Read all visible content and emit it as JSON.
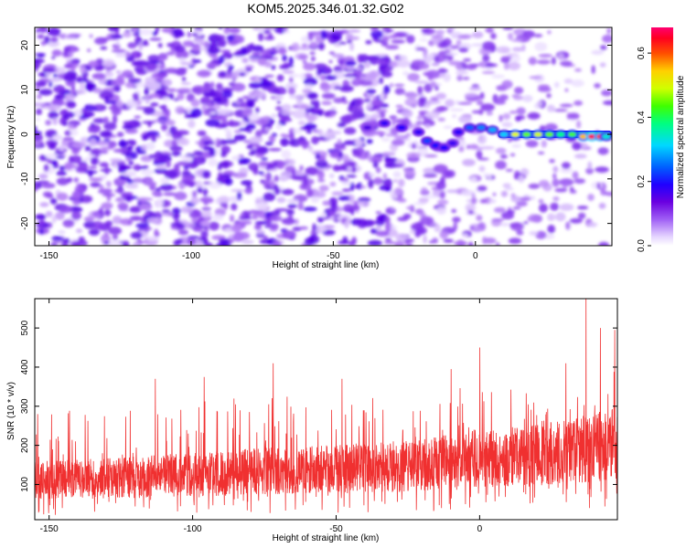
{
  "title": "KOM5.2025.346.01.32.G02",
  "colors": {
    "snr_line": "#f03030",
    "colormap": [
      "#ffffff",
      "#e6d6ff",
      "#b48cf5",
      "#8a3cf0",
      "#6a00e0",
      "#3a00ff",
      "#0050ff",
      "#00c8ff",
      "#00ff90",
      "#60ff00",
      "#ffff00",
      "#ff9000",
      "#ff0000",
      "#ff0060"
    ]
  },
  "chart_data": [
    {
      "id": "spectrogram",
      "type": "heatmap",
      "title": "",
      "xlabel": "Height of straight line (km)",
      "ylabel": "Frequency (Hz)",
      "xlim": [
        -155,
        48
      ],
      "ylim": [
        -25,
        24
      ],
      "xticks": [
        {
          "value": -150,
          "label": "-150"
        },
        {
          "value": -100,
          "label": "-100"
        },
        {
          "value": -50,
          "label": "-50"
        },
        {
          "value": 0,
          "label": "0"
        }
      ],
      "yticks": [
        {
          "value": -20,
          "label": "-20"
        },
        {
          "value": -10,
          "label": "-10"
        },
        {
          "value": 0,
          "label": "0"
        },
        {
          "value": 10,
          "label": "10"
        },
        {
          "value": 20,
          "label": "20"
        }
      ],
      "colorbar": {
        "label": "Normalized spectral amplitude",
        "range": [
          0,
          0.68
        ],
        "ticks": [
          {
            "value": 0.0,
            "label": "0.0"
          },
          {
            "value": 0.2,
            "label": "0.2"
          },
          {
            "value": 0.4,
            "label": "0.4"
          },
          {
            "value": 0.6,
            "label": "0.6"
          }
        ]
      },
      "signal_track": [
        {
          "x": -38,
          "y": 1.5,
          "amp": 0.2
        },
        {
          "x": -32,
          "y": 2.5,
          "amp": 0.24
        },
        {
          "x": -26,
          "y": 1.5,
          "amp": 0.26
        },
        {
          "x": -20,
          "y": 0.5,
          "amp": 0.24
        },
        {
          "x": -17,
          "y": -1.5,
          "amp": 0.3
        },
        {
          "x": -14,
          "y": -2.5,
          "amp": 0.27
        },
        {
          "x": -11,
          "y": -3,
          "amp": 0.26
        },
        {
          "x": -8,
          "y": -2,
          "amp": 0.23
        },
        {
          "x": -6,
          "y": 0.5,
          "amp": 0.25
        },
        {
          "x": -2,
          "y": 1.5,
          "amp": 0.32
        },
        {
          "x": 2,
          "y": 1.5,
          "amp": 0.34
        },
        {
          "x": 6,
          "y": 1,
          "amp": 0.36
        },
        {
          "x": 10,
          "y": 0,
          "amp": 0.38
        },
        {
          "x": 14,
          "y": 0,
          "amp": 0.56
        },
        {
          "x": 18,
          "y": 0,
          "amp": 0.5
        },
        {
          "x": 22,
          "y": 0,
          "amp": 0.55
        },
        {
          "x": 26,
          "y": 0,
          "amp": 0.5
        },
        {
          "x": 30,
          "y": 0,
          "amp": 0.44
        },
        {
          "x": 34,
          "y": 0,
          "amp": 0.48
        },
        {
          "x": 38,
          "y": -0.5,
          "amp": 0.6
        },
        {
          "x": 41,
          "y": -0.5,
          "amp": 0.68
        },
        {
          "x": 44,
          "y": -0.5,
          "amp": 0.64
        },
        {
          "x": 46,
          "y": -0.5,
          "amp": 0.4
        }
      ]
    },
    {
      "id": "snr",
      "type": "line",
      "title": "",
      "xlabel": "Height of straight line (km)",
      "ylabel": "SNR (10 * v/v)",
      "xlim": [
        -155,
        48
      ],
      "ylim": [
        10,
        575
      ],
      "xticks": [
        {
          "value": -150,
          "label": "-150"
        },
        {
          "value": -100,
          "label": "-100"
        },
        {
          "value": -50,
          "label": "-50"
        },
        {
          "value": 0,
          "label": "0"
        }
      ],
      "yticks": [
        {
          "value": 100,
          "label": "100"
        },
        {
          "value": 200,
          "label": "200"
        },
        {
          "value": 300,
          "label": "300"
        },
        {
          "value": 400,
          "label": "400"
        },
        {
          "value": 500,
          "label": "500"
        }
      ],
      "series": [
        {
          "name": "SNR",
          "trend": [
            {
              "x": -155,
              "y": 110
            },
            {
              "x": -130,
              "y": 115
            },
            {
              "x": -100,
              "y": 125
            },
            {
              "x": -70,
              "y": 135
            },
            {
              "x": -40,
              "y": 140
            },
            {
              "x": -20,
              "y": 150
            },
            {
              "x": 0,
              "y": 165
            },
            {
              "x": 20,
              "y": 175
            },
            {
              "x": 40,
              "y": 195
            },
            {
              "x": 48,
              "y": 205
            }
          ],
          "peaks": [
            {
              "x": -154,
              "y": 280
            },
            {
              "x": -113,
              "y": 370
            },
            {
              "x": -96,
              "y": 375
            },
            {
              "x": -72,
              "y": 410
            },
            {
              "x": -48,
              "y": 370
            },
            {
              "x": -10,
              "y": 395
            },
            {
              "x": 0,
              "y": 450
            },
            {
              "x": 30,
              "y": 410
            },
            {
              "x": 37,
              "y": 575
            },
            {
              "x": 42,
              "y": 500
            },
            {
              "x": 47,
              "y": 495
            }
          ]
        }
      ]
    }
  ]
}
